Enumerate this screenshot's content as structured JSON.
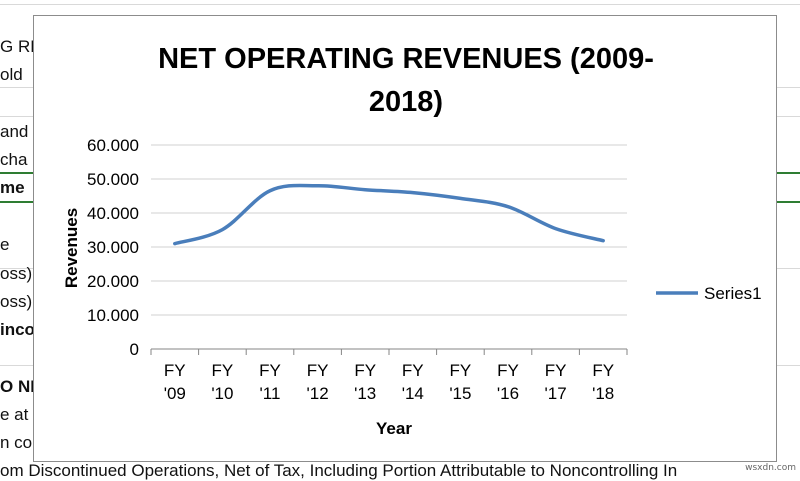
{
  "sheet": {
    "left_cells": [
      {
        "text": "G RE",
        "bold": false
      },
      {
        "text": "old",
        "bold": false
      },
      {
        "text": "and",
        "bold": false
      },
      {
        "text": "cha",
        "bold": false
      },
      {
        "text": "me",
        "bold": true
      },
      {
        "text": "e",
        "bold": false
      },
      {
        "text": "oss)",
        "bold": false
      },
      {
        "text": "oss)",
        "bold": false
      },
      {
        "text": "inco",
        "bold": true
      },
      {
        "text": "O NE",
        "bold": true
      },
      {
        "text": "e at",
        "bold": false
      },
      {
        "text": "n co",
        "bold": false
      }
    ],
    "bottom_text": "om Discontinued Operations, Net of Tax, Including Portion Attributable to Noncontrolling In",
    "watermark": "wsxdn.com"
  },
  "chart_data": {
    "type": "line",
    "title": "NET OPERATING REVENUES (2009-2018)",
    "title_lines": [
      "NET OPERATING REVENUES (2009-",
      "2018)"
    ],
    "xlabel": "Year",
    "ylabel": "Revenues",
    "categories": [
      [
        "FY",
        "'09"
      ],
      [
        "FY",
        "'10"
      ],
      [
        "FY",
        "'11"
      ],
      [
        "FY",
        "'12"
      ],
      [
        "FY",
        "'13"
      ],
      [
        "FY",
        "'14"
      ],
      [
        "FY",
        "'15"
      ],
      [
        "FY",
        "'16"
      ],
      [
        "FY",
        "'17"
      ],
      [
        "FY",
        "'18"
      ]
    ],
    "series": [
      {
        "name": "Series1",
        "color": "#4a7ebb",
        "values": [
          30.99,
          35.119,
          46.542,
          48.017,
          46.854,
          45.998,
          44.294,
          41.863,
          35.41,
          31.856
        ]
      }
    ],
    "ylim": [
      0,
      60
    ],
    "yticks": [
      0,
      10,
      20,
      30,
      40,
      50,
      60
    ],
    "ytick_labels": [
      "0",
      "10.000",
      "20.000",
      "30.000",
      "40.000",
      "50.000",
      "60.000"
    ],
    "grid": true,
    "legend_position": "right"
  }
}
